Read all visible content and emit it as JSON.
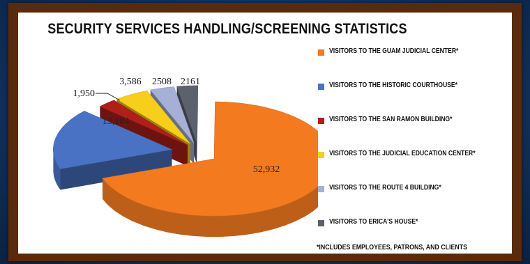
{
  "chart_data": {
    "type": "pie",
    "title": "SECURITY SERVICES HANDLING/SCREENING STATISTICS",
    "categories": [
      "VISITORS TO THE GUAM JUDICIAL CENTER*",
      "VISITORS TO THE HISTORIC COURTHOUSE*",
      "VISITORS TO THE SAN RAMON BUILDING*",
      "VISITORS TO THE JUDICIAL EDUCATION CENTER*",
      "VISITORS TO THE ROUTE 4 BUILDING*",
      "VISITORS TO ERICA'S HOUSE*"
    ],
    "values": [
      52932,
      13184,
      1950,
      3586,
      2508,
      2161
    ],
    "data_labels": [
      "52,932",
      "13,184",
      "1,950",
      "3,586",
      "2508",
      "2161"
    ],
    "colors": [
      "#f47a20",
      "#4a72c4",
      "#b0201b",
      "#f7cf1a",
      "#a6afd6",
      "#5c626d"
    ],
    "legend_position": "right",
    "footnote": "*INCLUDES EMPLOYEES, PATRONS, AND CLIENTS"
  }
}
